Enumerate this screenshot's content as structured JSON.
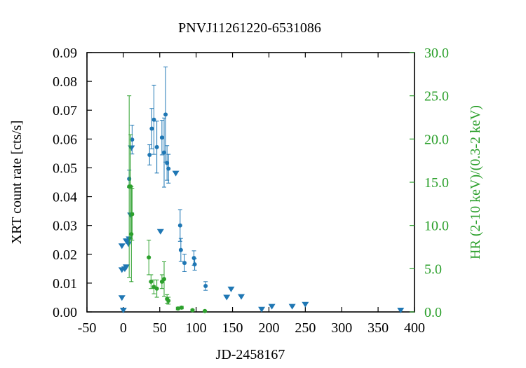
{
  "chart_data": {
    "type": "scatter",
    "title": "PNVJ11261220-6531086",
    "xlabel": "JD-2458167",
    "ylabel": "XRT count rate [cts/s]",
    "y2label": "HR (2-10 keV)/(0.3-2 keV)",
    "xlim": [
      -50,
      400
    ],
    "ylim": [
      0,
      0.09
    ],
    "y2lim": [
      0,
      30
    ],
    "x_ticks": [
      "-50",
      "0",
      "50",
      "100",
      "150",
      "200",
      "250",
      "300",
      "350",
      "400"
    ],
    "y_ticks": [
      "0.00",
      "0.01",
      "0.02",
      "0.03",
      "0.04",
      "0.05",
      "0.06",
      "0.07",
      "0.08",
      "0.09"
    ],
    "y2_ticks": [
      "0.0",
      "5.0",
      "10.0",
      "15.0",
      "20.0",
      "25.0",
      "30.0"
    ],
    "grid": false,
    "colors": {
      "rate": "#1f77b4",
      "hr": "#2ca02c",
      "right_axis": "#2ca02c",
      "axis": "#000000"
    },
    "series": [
      {
        "marker": "circle",
        "axis": "left",
        "color": "#1f77b4",
        "points": [
          {
            "x": 8,
            "y": 0.0462,
            "err": 0.003
          },
          {
            "x": 12,
            "y": 0.0598,
            "err": 0.005
          },
          {
            "x": 36,
            "y": 0.0545,
            "err": 0.0035
          },
          {
            "x": 39,
            "y": 0.0636,
            "err": 0.007
          },
          {
            "x": 42,
            "y": 0.0667,
            "err": 0.012
          },
          {
            "x": 46,
            "y": 0.0572,
            "err": 0.009
          },
          {
            "x": 53,
            "y": 0.0605,
            "err": 0.006
          },
          {
            "x": 56,
            "y": 0.0553,
            "err": 0.012
          },
          {
            "x": 58,
            "y": 0.0685,
            "err": 0.0165
          },
          {
            "x": 60,
            "y": 0.0517,
            "err": 0.006
          },
          {
            "x": 62,
            "y": 0.0497,
            "err": 0.005
          },
          {
            "x": 78,
            "y": 0.03,
            "err": 0.0055
          },
          {
            "x": 79,
            "y": 0.0215,
            "err": 0.004
          },
          {
            "x": 84,
            "y": 0.017,
            "err": 0.003
          },
          {
            "x": 97,
            "y": 0.0187,
            "err": 0.0025
          },
          {
            "x": 98,
            "y": 0.0165,
            "err": 0.002
          },
          {
            "x": 113,
            "y": 0.009,
            "err": 0.0015
          }
        ]
      },
      {
        "marker": "triangle-down",
        "axis": "left",
        "color": "#1f77b4",
        "points": [
          {
            "x": -2,
            "y": 0.0048
          },
          {
            "x": -2,
            "y": 0.0145
          },
          {
            "x": -2,
            "y": 0.0228
          },
          {
            "x": 0,
            "y": 0.0005
          },
          {
            "x": 2,
            "y": 0.0148
          },
          {
            "x": 4,
            "y": 0.0155
          },
          {
            "x": 4,
            "y": 0.0245
          },
          {
            "x": 6,
            "y": 0.0245
          },
          {
            "x": 7,
            "y": 0.0235
          },
          {
            "x": 8,
            "y": 0.0252
          },
          {
            "x": 10,
            "y": 0.0335
          },
          {
            "x": 11,
            "y": 0.0568
          },
          {
            "x": 51,
            "y": 0.0278
          },
          {
            "x": 72,
            "y": 0.048
          },
          {
            "x": 142,
            "y": 0.005
          },
          {
            "x": 148,
            "y": 0.0078
          },
          {
            "x": 162,
            "y": 0.0052
          },
          {
            "x": 190,
            "y": 0.0008
          },
          {
            "x": 204,
            "y": 0.0018
          },
          {
            "x": 232,
            "y": 0.0018
          },
          {
            "x": 250,
            "y": 0.0025
          },
          {
            "x": 381,
            "y": 0.0005
          }
        ]
      },
      {
        "marker": "circle",
        "axis": "right",
        "color": "#2ca02c",
        "points": [
          {
            "x": 8,
            "y2": 14.5,
            "err": 10.5
          },
          {
            "x": 10,
            "y2": 14.5,
            "err": 6.0
          },
          {
            "x": 11,
            "y2": 9.0,
            "err": 5.5
          },
          {
            "x": 12,
            "y2": 11.3,
            "err": 3.0
          },
          {
            "x": 35,
            "y2": 6.3,
            "err": 2.0
          },
          {
            "x": 38,
            "y2": 3.5,
            "err": 0.8
          },
          {
            "x": 42,
            "y2": 2.9,
            "err": 0.8
          },
          {
            "x": 46,
            "y2": 2.7,
            "err": 1.0
          },
          {
            "x": 53,
            "y2": 3.5,
            "err": 0.8
          },
          {
            "x": 56,
            "y2": 3.8,
            "err": 2.0
          },
          {
            "x": 60,
            "y2": 1.5,
            "err": 0.5
          },
          {
            "x": 62,
            "y2": 1.3,
            "err": 0.4
          },
          {
            "x": 75,
            "y2": 0.4,
            "err": 0.15
          },
          {
            "x": 80,
            "y2": 0.5,
            "err": 0.15
          },
          {
            "x": 95,
            "y2": 0.2,
            "err": 0.1
          },
          {
            "x": 112,
            "y2": 0.1,
            "err": 0.05
          }
        ]
      }
    ]
  }
}
